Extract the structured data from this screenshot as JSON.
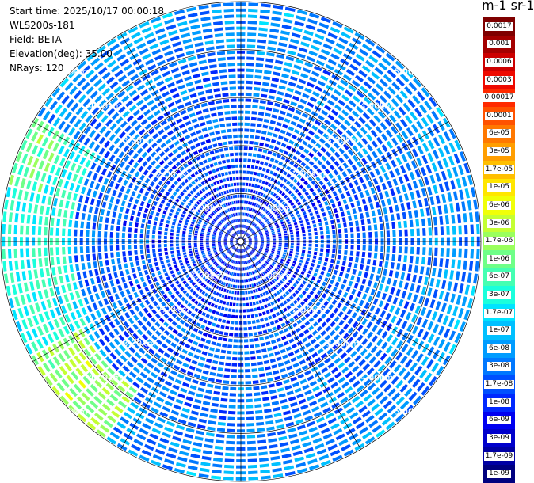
{
  "info": {
    "start_time": "Start time: 2025/10/17 00:00:18",
    "instrument": "WLS200s-181",
    "field": "Field: BETA",
    "elevation": "Elevation(deg): 35.00",
    "nrays": "NRays: 120"
  },
  "units_title": "m-1 sr-1",
  "colorbar": {
    "labels": [
      "0.0017",
      "0.001",
      "0.0006",
      "0.0003",
      "0.00017",
      "0.0001",
      "6e-05",
      "3e-05",
      "1.7e-05",
      "1e-05",
      "6e-06",
      "3e-06",
      "1.7e-06",
      "1e-06",
      "6e-07",
      "3e-07",
      "1.7e-07",
      "1e-07",
      "6e-08",
      "3e-08",
      "1.7e-08",
      "1e-08",
      "6e-09",
      "3e-09",
      "1.7e-09",
      "1e-09"
    ],
    "colors": [
      "#7f0000",
      "#a40000",
      "#cc0000",
      "#ee0a00",
      "#ff2a00",
      "#ff5200",
      "#ff7800",
      "#ff9e00",
      "#ffbf00",
      "#ffe600",
      "#f0ff08",
      "#c4ff33",
      "#9aff5d",
      "#6fff88",
      "#45ffb2",
      "#1affdc",
      "#00e4ff",
      "#00c0ff",
      "#009cff",
      "#0078ff",
      "#0050ff",
      "#0028ff",
      "#0000f0",
      "#0000cc",
      "#0000a4",
      "#00007f"
    ]
  },
  "chart_data": {
    "type": "heatmap",
    "projection": "polar-ppi",
    "n_rays": 120,
    "range_rings_km": [
      1,
      2,
      3,
      4,
      5
    ],
    "ring_labels": [
      "1.00km",
      "2.00km",
      "3.00km",
      "4.00km",
      "5.00km"
    ],
    "max_range_km": 5.0,
    "units": "m-1 sr-1",
    "scale": "log",
    "value_range": [
      1e-09,
      0.0017
    ],
    "typical_value_near": 1e-08,
    "typical_value_far": 6e-08,
    "enhanced_sectors": [
      {
        "azimuth_deg": [
          240,
          300
        ],
        "range_km": [
          3.5,
          5.0
        ],
        "value": 3e-07
      },
      {
        "azimuth_deg": [
          215,
          240
        ],
        "range_km": [
          3.8,
          5.0
        ],
        "value": 1.7e-06
      },
      {
        "azimuth_deg": [
          285,
          300
        ],
        "range_km": [
          4.2,
          5.0
        ],
        "value": 1e-06
      }
    ]
  }
}
